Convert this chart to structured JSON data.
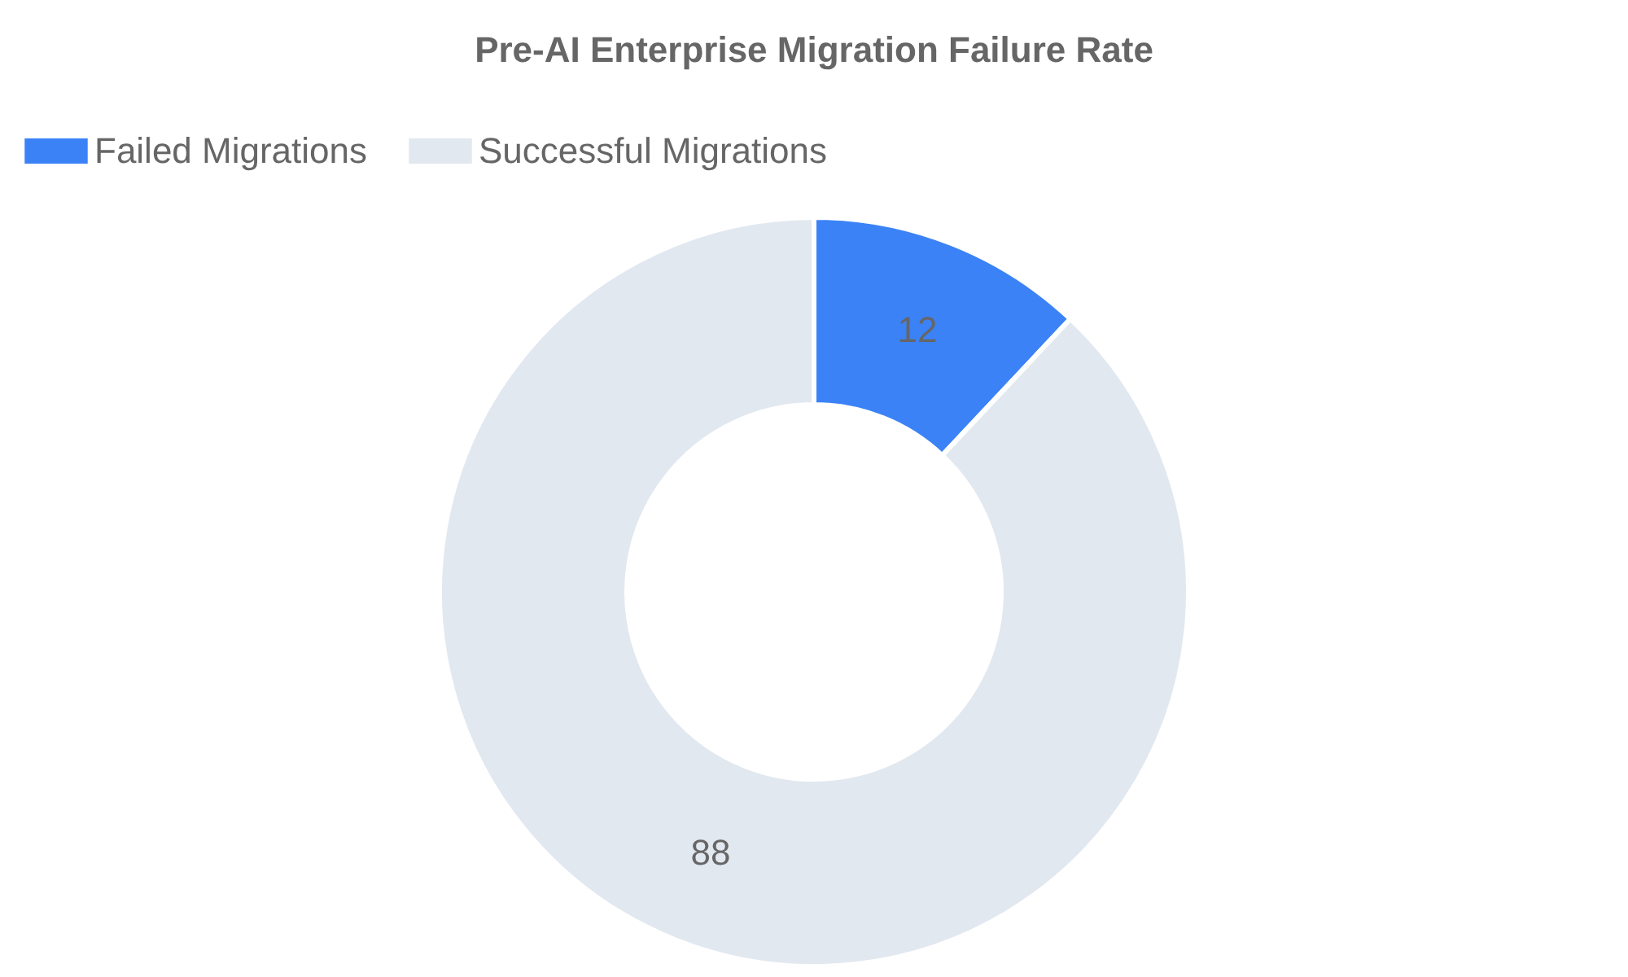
{
  "chart_data": {
    "type": "donut",
    "title": "Pre-AI Enterprise Migration Failure Rate",
    "categories": [
      "Failed Migrations",
      "Successful Migrations"
    ],
    "values": [
      12,
      88
    ],
    "colors": [
      "#3b82f6",
      "#e2e8f0"
    ],
    "data_labels": true,
    "legend": "top"
  }
}
